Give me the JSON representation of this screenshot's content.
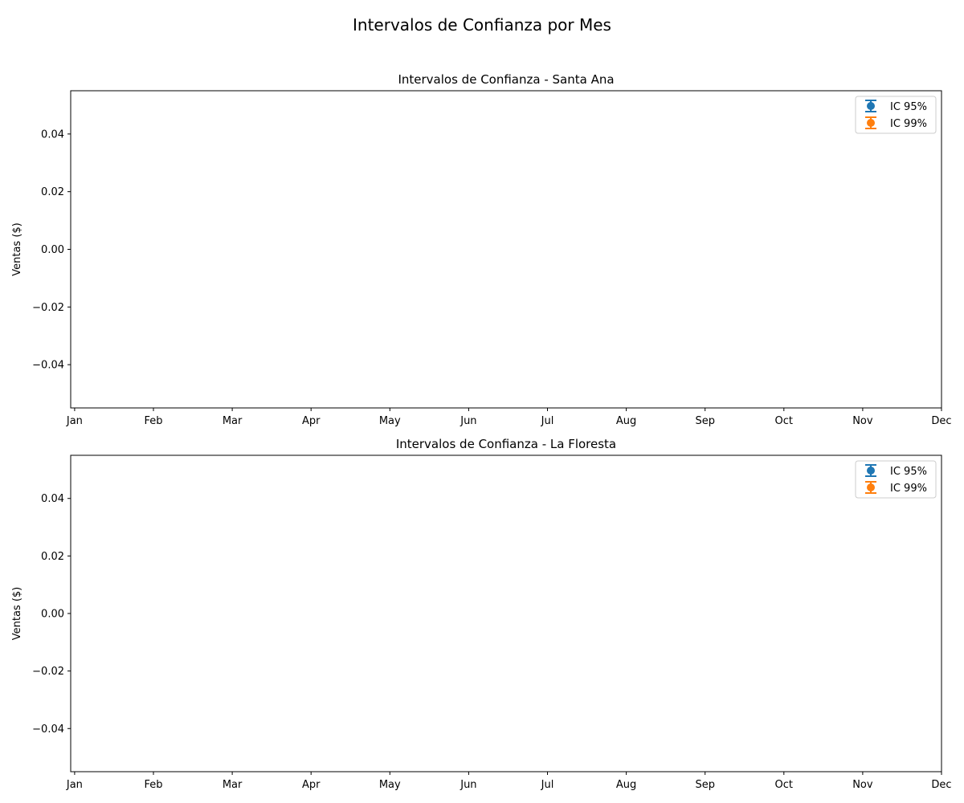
{
  "figure": {
    "suptitle": "Intervalos de Confianza por Mes"
  },
  "colors": {
    "ic95": "#1f77b4",
    "ic99": "#ff7f0e",
    "axes": "#000000",
    "legend_border": "#cccccc"
  },
  "chart_data": [
    {
      "type": "errorbar",
      "title": "Intervalos de Confianza - Santa Ana",
      "xlabel": "",
      "ylabel": "Ventas ($)",
      "categories": [
        "Jan",
        "Feb",
        "Mar",
        "Apr",
        "May",
        "Jun",
        "Jul",
        "Aug",
        "Sep",
        "Oct",
        "Nov",
        "Dec"
      ],
      "yticks": [
        -0.04,
        -0.02,
        0.0,
        0.02,
        0.04
      ],
      "ytick_labels": [
        "−0.04",
        "−0.02",
        "0.00",
        "0.02",
        "0.04"
      ],
      "ylim": [
        -0.055,
        0.055
      ],
      "xlim": [
        -0.05,
        11.0
      ],
      "grid": false,
      "legend_position": "upper right",
      "series": [
        {
          "name": "IC 95%",
          "color": "#1f77b4",
          "points": []
        },
        {
          "name": "IC 99%",
          "color": "#ff7f0e",
          "points": []
        }
      ]
    },
    {
      "type": "errorbar",
      "title": "Intervalos de Confianza - La Floresta",
      "xlabel": "",
      "ylabel": "Ventas ($)",
      "categories": [
        "Jan",
        "Feb",
        "Mar",
        "Apr",
        "May",
        "Jun",
        "Jul",
        "Aug",
        "Sep",
        "Oct",
        "Nov",
        "Dec"
      ],
      "yticks": [
        -0.04,
        -0.02,
        0.0,
        0.02,
        0.04
      ],
      "ytick_labels": [
        "−0.04",
        "−0.02",
        "0.00",
        "0.02",
        "0.04"
      ],
      "ylim": [
        -0.055,
        0.055
      ],
      "xlim": [
        -0.05,
        11.0
      ],
      "grid": false,
      "legend_position": "upper right",
      "series": [
        {
          "name": "IC 95%",
          "color": "#1f77b4",
          "points": []
        },
        {
          "name": "IC 99%",
          "color": "#ff7f0e",
          "points": []
        }
      ]
    }
  ]
}
